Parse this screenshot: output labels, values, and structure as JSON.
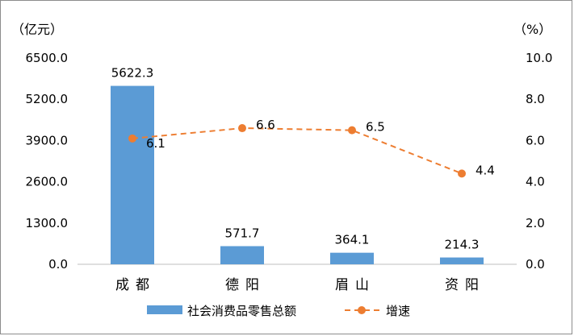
{
  "chart_data": {
    "type": "bar+line",
    "categories": [
      "成都",
      "德阳",
      "眉山",
      "资阳"
    ],
    "series": [
      {
        "name": "社会消费品零售总额",
        "type": "bar",
        "axis": "left",
        "values": [
          5622.3,
          571.7,
          364.1,
          214.3
        ],
        "labels": [
          "5622.3",
          "571.7",
          "364.1",
          "214.3"
        ],
        "color": "#5b9bd5"
      },
      {
        "name": "增速",
        "type": "line",
        "style": "dashed",
        "axis": "right",
        "values": [
          6.1,
          6.6,
          6.5,
          4.4
        ],
        "labels": [
          "6.1",
          "6.6",
          "6.5",
          "4.4"
        ],
        "color": "#ed7d31"
      }
    ],
    "y_left": {
      "unit": "（亿元）",
      "range": [
        0,
        6500
      ],
      "ticks": [
        "0.0",
        "1300.0",
        "2600.0",
        "3900.0",
        "5200.0",
        "6500.0"
      ]
    },
    "y_right": {
      "unit": "（%）",
      "range": [
        0,
        10
      ],
      "ticks": [
        "0.0",
        "2.0",
        "4.0",
        "6.0",
        "8.0",
        "10.0"
      ]
    },
    "grid": false,
    "legend": "bottom"
  }
}
